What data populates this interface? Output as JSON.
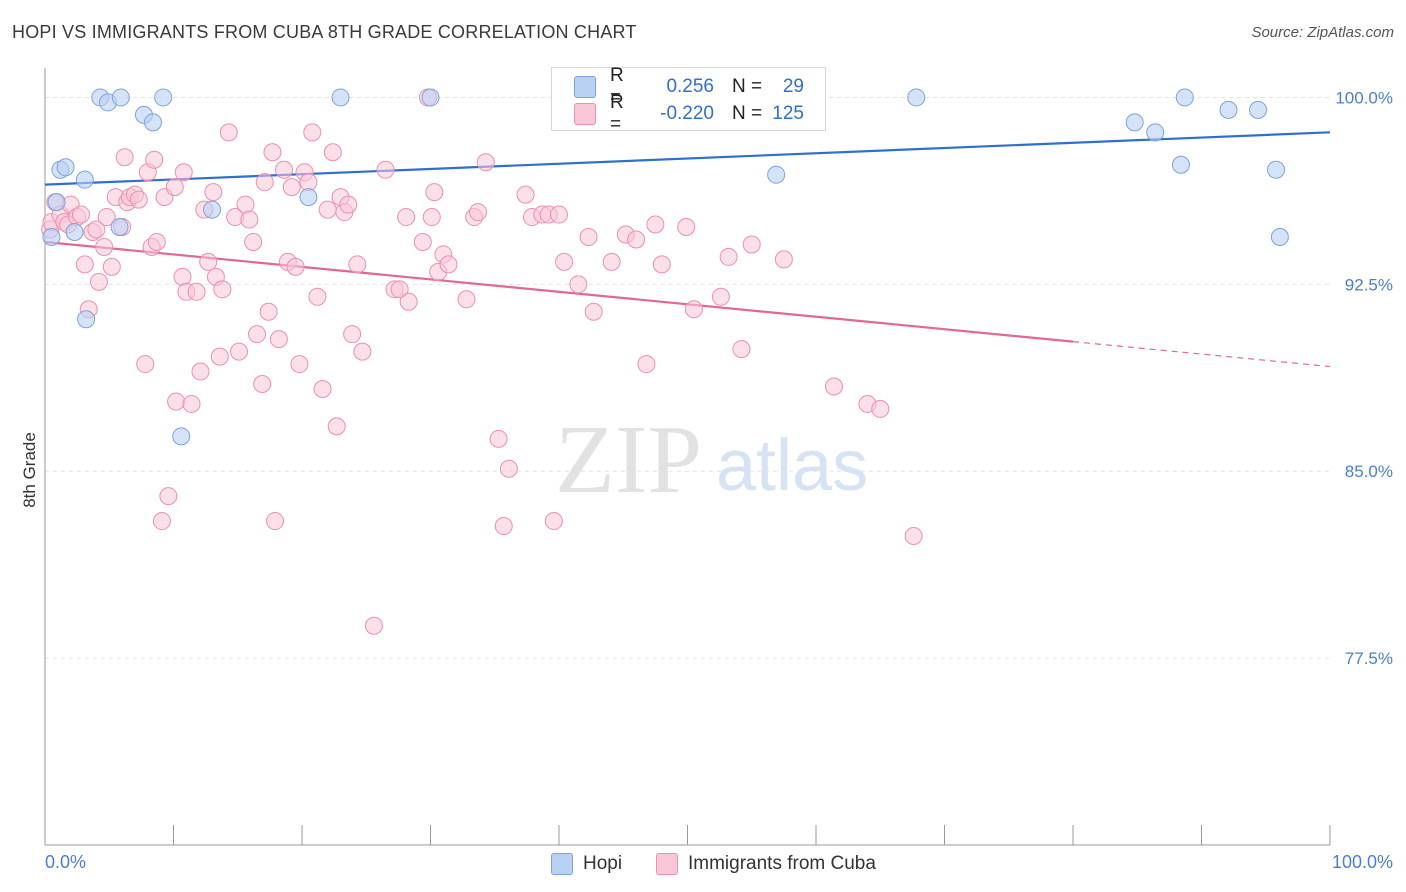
{
  "title": "HOPI VS IMMIGRANTS FROM CUBA 8TH GRADE CORRELATION CHART",
  "source": "Source: ZipAtlas.com",
  "watermark": {
    "zip": "ZIP",
    "atlas": "atlas"
  },
  "legend": {
    "rows": [
      {
        "r_label": "R =",
        "r_value": "0.256",
        "n_label": "N =",
        "n_value": "29"
      },
      {
        "r_label": "R =",
        "r_value": "-0.220",
        "n_label": "N =",
        "n_value": "125"
      }
    ]
  },
  "bottom_legend": [
    {
      "label": "Hopi"
    },
    {
      "label": "Immigrants from Cuba"
    }
  ],
  "colors": {
    "hopi_fill": "#b9d1f3",
    "hopi_stroke": "#7ba3e0",
    "hopi_line": "#2f6fd1",
    "cuba_fill": "#f9c7d7",
    "cuba_stroke": "#ef8fae",
    "cuba_line": "#e2688f",
    "grid": "#e3e3e3",
    "axis": "#9a9a9a",
    "tick_text": "#4a7fd4"
  },
  "chart_data": {
    "type": "scatter",
    "title": "HOPI VS IMMIGRANTS FROM CUBA 8TH GRADE CORRELATION CHART",
    "xlabel": "",
    "ylabel": "8th Grade",
    "xlim": [
      0,
      100
    ],
    "ylim": [
      70.0,
      100.7
    ],
    "ytick_values": [
      100.0,
      92.5,
      85.0,
      77.5
    ],
    "ytick_labels": [
      "100.0%",
      "92.5%",
      "85.0%",
      "77.5%"
    ],
    "xtick_labels": [
      "0.0%",
      "100.0%"
    ],
    "series": [
      {
        "name": "Hopi",
        "r": 0.256,
        "n": 29,
        "trend": {
          "x0": 0,
          "y0": 96.5,
          "x1": 100,
          "y1": 98.6
        },
        "points": [
          [
            0.5,
            94.4
          ],
          [
            0.9,
            95.8
          ],
          [
            1.2,
            97.1
          ],
          [
            1.6,
            97.2
          ],
          [
            2.3,
            94.6
          ],
          [
            3.1,
            96.7
          ],
          [
            3.2,
            91.1
          ],
          [
            4.3,
            100.0
          ],
          [
            4.9,
            99.8
          ],
          [
            5.9,
            100.0
          ],
          [
            5.8,
            94.8
          ],
          [
            7.7,
            99.3
          ],
          [
            8.4,
            99.0
          ],
          [
            9.2,
            100.0
          ],
          [
            10.6,
            86.4
          ],
          [
            13.0,
            95.5
          ],
          [
            20.5,
            96.0
          ],
          [
            23.0,
            100.0
          ],
          [
            30.0,
            100.0
          ],
          [
            56.9,
            96.9
          ],
          [
            67.8,
            100.0
          ],
          [
            84.8,
            99.0
          ],
          [
            86.4,
            98.6
          ],
          [
            88.4,
            97.3
          ],
          [
            88.7,
            100.0
          ],
          [
            92.1,
            99.5
          ],
          [
            94.4,
            99.5
          ],
          [
            95.8,
            97.1
          ],
          [
            96.1,
            94.4
          ]
        ]
      },
      {
        "name": "Immigrants from Cuba",
        "r": -0.22,
        "n": 125,
        "trend": {
          "x0": 0,
          "y0": 94.2,
          "x1": 80,
          "y1": 90.2
        },
        "trend_dashed": {
          "x0": 80,
          "y0": 90.2,
          "x1": 100,
          "y1": 89.2
        },
        "points": [
          [
            0.4,
            94.7
          ],
          [
            0.5,
            95.0
          ],
          [
            0.8,
            95.8
          ],
          [
            1.2,
            95.3
          ],
          [
            1.5,
            95.0
          ],
          [
            1.8,
            94.9
          ],
          [
            2.0,
            95.7
          ],
          [
            2.5,
            95.2
          ],
          [
            2.8,
            95.3
          ],
          [
            3.1,
            93.3
          ],
          [
            3.4,
            91.5
          ],
          [
            3.7,
            94.6
          ],
          [
            4.0,
            94.7
          ],
          [
            4.2,
            92.6
          ],
          [
            4.6,
            94.0
          ],
          [
            4.8,
            95.2
          ],
          [
            5.2,
            93.2
          ],
          [
            5.5,
            96.0
          ],
          [
            6.0,
            94.8
          ],
          [
            6.2,
            97.6
          ],
          [
            6.4,
            95.8
          ],
          [
            6.6,
            96.0
          ],
          [
            7.0,
            96.1
          ],
          [
            7.3,
            95.9
          ],
          [
            7.8,
            89.3
          ],
          [
            8.0,
            97.0
          ],
          [
            8.3,
            94.0
          ],
          [
            8.5,
            97.5
          ],
          [
            8.7,
            94.2
          ],
          [
            9.1,
            83.0
          ],
          [
            9.3,
            96.0
          ],
          [
            9.6,
            84.0
          ],
          [
            10.1,
            96.4
          ],
          [
            10.2,
            87.8
          ],
          [
            10.7,
            92.8
          ],
          [
            10.8,
            97.0
          ],
          [
            11.0,
            92.2
          ],
          [
            11.4,
            87.7
          ],
          [
            11.8,
            92.2
          ],
          [
            12.1,
            89.0
          ],
          [
            12.4,
            95.5
          ],
          [
            12.7,
            93.4
          ],
          [
            13.1,
            96.2
          ],
          [
            13.3,
            92.8
          ],
          [
            13.6,
            89.6
          ],
          [
            13.8,
            92.3
          ],
          [
            14.3,
            98.6
          ],
          [
            14.8,
            95.2
          ],
          [
            15.1,
            89.8
          ],
          [
            15.6,
            95.7
          ],
          [
            15.9,
            95.1
          ],
          [
            16.2,
            94.2
          ],
          [
            16.5,
            90.5
          ],
          [
            16.9,
            88.5
          ],
          [
            17.1,
            96.6
          ],
          [
            17.4,
            91.4
          ],
          [
            17.7,
            97.8
          ],
          [
            17.9,
            83.0
          ],
          [
            18.2,
            90.3
          ],
          [
            18.6,
            97.1
          ],
          [
            18.9,
            93.4
          ],
          [
            19.2,
            96.4
          ],
          [
            19.5,
            93.2
          ],
          [
            19.8,
            89.3
          ],
          [
            20.2,
            97.0
          ],
          [
            20.5,
            96.6
          ],
          [
            20.8,
            98.6
          ],
          [
            21.2,
            92.0
          ],
          [
            21.6,
            88.3
          ],
          [
            22.0,
            95.5
          ],
          [
            22.4,
            97.8
          ],
          [
            22.7,
            86.8
          ],
          [
            23.0,
            96.0
          ],
          [
            23.3,
            95.4
          ],
          [
            23.6,
            95.7
          ],
          [
            23.9,
            90.5
          ],
          [
            24.3,
            93.3
          ],
          [
            24.7,
            89.8
          ],
          [
            25.6,
            78.8
          ],
          [
            26.5,
            97.1
          ],
          [
            27.2,
            92.3
          ],
          [
            27.6,
            92.3
          ],
          [
            28.1,
            95.2
          ],
          [
            28.3,
            91.8
          ],
          [
            29.4,
            94.2
          ],
          [
            29.8,
            100.0
          ],
          [
            30.1,
            95.2
          ],
          [
            30.3,
            96.2
          ],
          [
            30.6,
            93.0
          ],
          [
            31.0,
            93.7
          ],
          [
            31.4,
            93.3
          ],
          [
            32.8,
            91.9
          ],
          [
            33.4,
            95.2
          ],
          [
            33.7,
            95.4
          ],
          [
            34.3,
            97.4
          ],
          [
            35.3,
            86.3
          ],
          [
            35.7,
            82.8
          ],
          [
            36.1,
            85.1
          ],
          [
            37.4,
            96.1
          ],
          [
            37.9,
            95.2
          ],
          [
            38.7,
            95.3
          ],
          [
            39.2,
            95.3
          ],
          [
            39.6,
            83.0
          ],
          [
            40.0,
            95.3
          ],
          [
            40.4,
            93.4
          ],
          [
            41.5,
            92.5
          ],
          [
            42.3,
            94.4
          ],
          [
            42.7,
            91.4
          ],
          [
            44.1,
            93.4
          ],
          [
            45.2,
            94.5
          ],
          [
            46.0,
            94.3
          ],
          [
            46.8,
            89.3
          ],
          [
            47.5,
            94.9
          ],
          [
            48.0,
            93.3
          ],
          [
            49.9,
            94.8
          ],
          [
            50.5,
            91.5
          ],
          [
            52.6,
            92.0
          ],
          [
            53.2,
            93.6
          ],
          [
            54.2,
            89.9
          ],
          [
            55.0,
            94.1
          ],
          [
            57.5,
            93.5
          ],
          [
            61.4,
            88.4
          ],
          [
            64.0,
            87.7
          ],
          [
            65.0,
            87.5
          ],
          [
            67.6,
            82.4
          ]
        ]
      }
    ]
  }
}
